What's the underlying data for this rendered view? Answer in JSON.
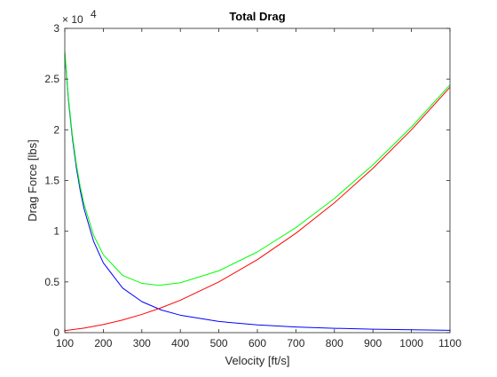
{
  "chart_data": {
    "type": "line",
    "title": "Total Drag",
    "xlabel": "Velocity [ft/s]",
    "ylabel": "Drag Force [lbs]",
    "xlim": [
      100,
      1100
    ],
    "ylim": [
      0,
      3
    ],
    "y_exponent_base": "× 10",
    "y_exponent_power": "4",
    "x_ticks": [
      "100",
      "200",
      "300",
      "400",
      "500",
      "600",
      "700",
      "800",
      "900",
      "1000",
      "1100"
    ],
    "y_ticks": [
      "0",
      "0.5",
      "1",
      "1.5",
      "2",
      "2.5",
      "3"
    ],
    "grid": false,
    "series": [
      {
        "color": "#0000ff",
        "x": [
          100,
          110,
          120,
          130,
          140,
          150,
          175,
          200,
          250,
          300,
          350,
          400,
          500,
          600,
          700,
          800,
          900,
          1000,
          1100
        ],
        "y": [
          2.75,
          2.273,
          1.91,
          1.627,
          1.403,
          1.222,
          0.898,
          0.688,
          0.44,
          0.306,
          0.224,
          0.172,
          0.11,
          0.076,
          0.056,
          0.043,
          0.034,
          0.028,
          0.023
        ]
      },
      {
        "color": "#ff0000",
        "x": [
          100,
          150,
          200,
          250,
          300,
          350,
          400,
          500,
          600,
          700,
          800,
          900,
          1000,
          1100
        ],
        "y": [
          0.02,
          0.045,
          0.08,
          0.125,
          0.18,
          0.245,
          0.32,
          0.5,
          0.72,
          0.98,
          1.28,
          1.62,
          2.0,
          2.42
        ]
      },
      {
        "color": "#00ff00",
        "x": [
          100,
          110,
          120,
          130,
          140,
          150,
          175,
          200,
          250,
          300,
          335,
          350,
          400,
          500,
          600,
          700,
          800,
          900,
          1000,
          1100
        ],
        "y": [
          2.77,
          2.297,
          1.939,
          1.661,
          1.442,
          1.267,
          0.959,
          0.768,
          0.565,
          0.486,
          0.47,
          0.469,
          0.492,
          0.61,
          0.796,
          1.036,
          1.323,
          1.654,
          2.028,
          2.443
        ]
      }
    ]
  }
}
